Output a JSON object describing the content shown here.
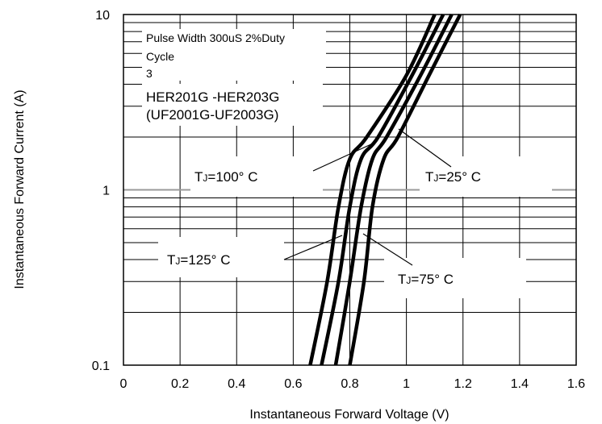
{
  "chart_data": {
    "type": "line",
    "xlabel": "Instantaneous Forward Voltage (V)",
    "ylabel": "Instantaneous Forward Current (A)",
    "xlim": [
      0,
      1.6
    ],
    "ylim": [
      0.1,
      10
    ],
    "yscale": "log",
    "grid": true,
    "x_ticks": [
      "0",
      "0.2",
      "0.4",
      "0.6",
      "0.8",
      "1",
      "1.2",
      "1.4",
      "1.6"
    ],
    "y_ticks": [
      "0.1",
      "1",
      "10"
    ],
    "annotations": {
      "pulse": "Pulse Width 300uS 2%Duty",
      "pulse2": "Cycle",
      "pulse3": "3",
      "part1": "HER201G -HER203G",
      "part2": "(UF2001G-UF2003G)"
    },
    "series": [
      {
        "name": "TJ=125° C",
        "label_sub": "J",
        "label_rest": "=125° C",
        "x": [
          0.66,
          0.72,
          0.76,
          0.8,
          0.86,
          1.0,
          1.1
        ],
        "y": [
          0.1,
          0.3,
          0.8,
          1.5,
          2.0,
          4.5,
          10
        ]
      },
      {
        "name": "TJ=100° C",
        "label_sub": "J",
        "label_rest": "=100° C",
        "x": [
          0.7,
          0.76,
          0.8,
          0.84,
          0.9,
          1.02,
          1.13
        ],
        "y": [
          0.1,
          0.3,
          0.8,
          1.5,
          2.0,
          4.5,
          10
        ]
      },
      {
        "name": "TJ=75° C",
        "label_sub": "J",
        "label_rest": "=75° C",
        "x": [
          0.75,
          0.8,
          0.84,
          0.88,
          0.93,
          1.05,
          1.16
        ],
        "y": [
          0.1,
          0.3,
          0.8,
          1.5,
          2.0,
          4.5,
          10
        ]
      },
      {
        "name": "TJ=25° C",
        "label_sub": "J",
        "label_rest": "=25° C",
        "x": [
          0.8,
          0.85,
          0.88,
          0.92,
          0.97,
          1.08,
          1.19
        ],
        "y": [
          0.1,
          0.3,
          0.8,
          1.5,
          2.0,
          4.5,
          10
        ]
      }
    ]
  }
}
